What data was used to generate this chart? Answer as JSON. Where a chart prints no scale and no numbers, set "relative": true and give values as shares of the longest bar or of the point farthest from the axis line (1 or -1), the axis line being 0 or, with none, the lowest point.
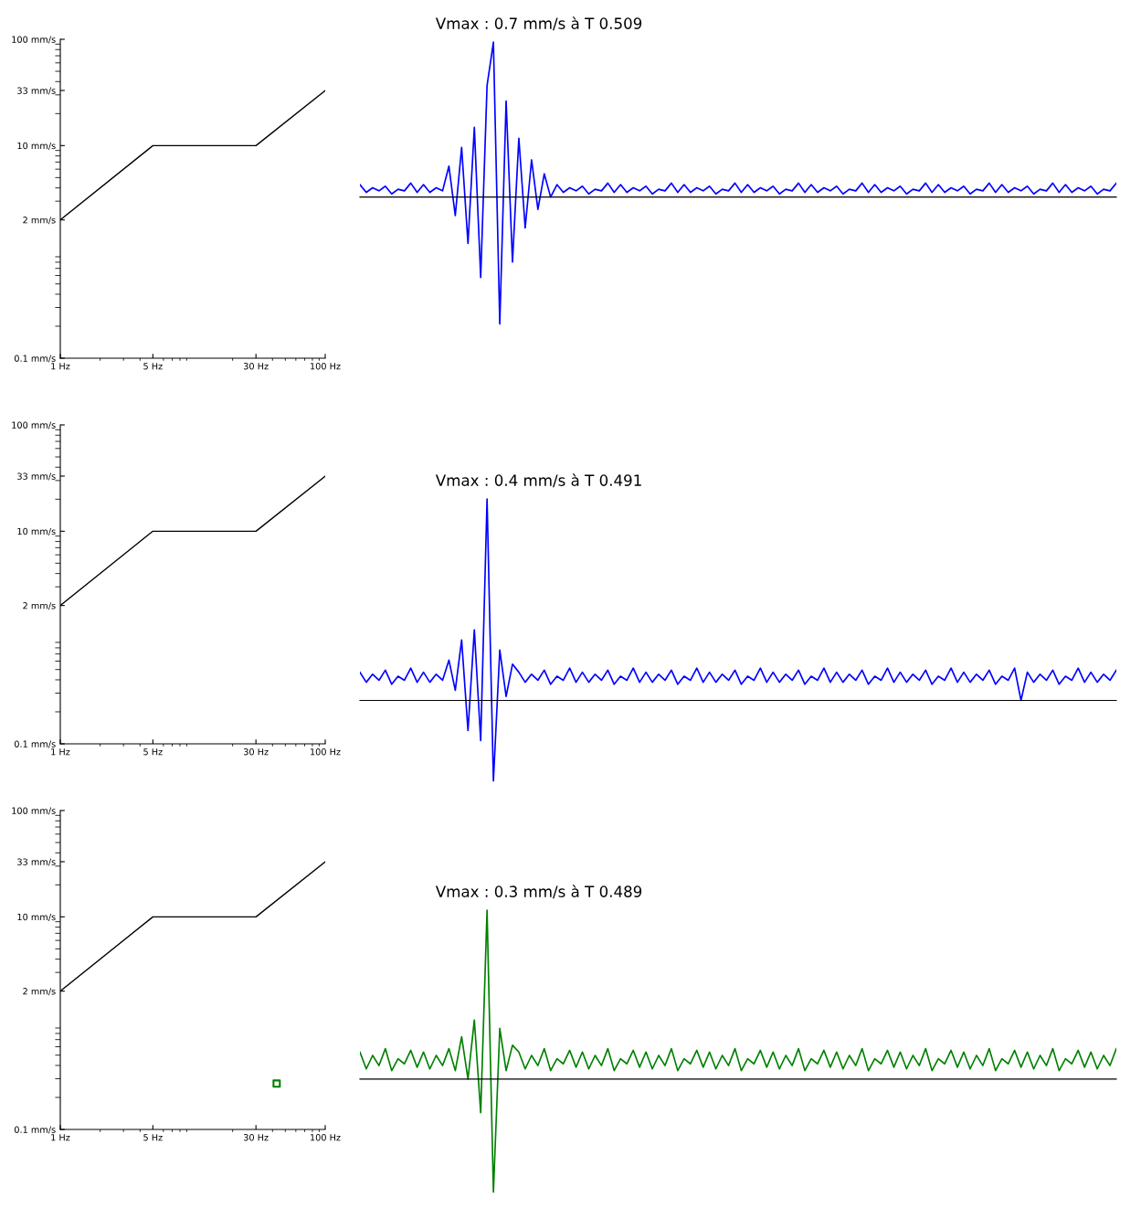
{
  "chart_data": [
    {
      "type": "line",
      "log": "xy",
      "grid": false,
      "xlim": [
        1,
        100
      ],
      "ylim": [
        0.1,
        100
      ],
      "xticks": [
        {
          "value": 1,
          "label": "1 Hz"
        },
        {
          "value": 5,
          "label": "5 Hz"
        },
        {
          "value": 30,
          "label": "30 Hz"
        },
        {
          "value": 100,
          "label": "100 Hz"
        }
      ],
      "yticks": [
        {
          "value": 0.1,
          "label": "0.1 mm/s"
        },
        {
          "value": 2,
          "label": "2 mm/s"
        },
        {
          "value": 10,
          "label": "10 mm/s"
        },
        {
          "value": 33,
          "label": "33 mm/s"
        },
        {
          "value": 100,
          "label": "100 mm/s"
        }
      ],
      "series": [
        {
          "type": "line",
          "x": [
            1,
            5,
            30,
            100
          ],
          "values": [
            2,
            10,
            10,
            33
          ],
          "color": "#000000"
        }
      ]
    },
    {
      "type": "line",
      "title": "Vmax : 0.7 mm/s à T 0.509",
      "relative": true,
      "color": "#0000ff",
      "categories": [
        null,
        null,
        null,
        null,
        null,
        null,
        null,
        null,
        null,
        null,
        null,
        null,
        null,
        null,
        null,
        null,
        null,
        null,
        null,
        null,
        null,
        null,
        null,
        null,
        null,
        null,
        null,
        null,
        null,
        null,
        null,
        null,
        null,
        null,
        null,
        null,
        null,
        null,
        null,
        null,
        null,
        null,
        null,
        null,
        null,
        null,
        null,
        null,
        null,
        null,
        null,
        null,
        null,
        null,
        null,
        null,
        null,
        null,
        null,
        null,
        null,
        null,
        null,
        null,
        null,
        null,
        null,
        null,
        null,
        null,
        null,
        null,
        null,
        null,
        null,
        null,
        null,
        null,
        null,
        null,
        null,
        null,
        null,
        null,
        null,
        null,
        null,
        null,
        null,
        null,
        null,
        null,
        null,
        null,
        null,
        null,
        null,
        null,
        null,
        null,
        null,
        null,
        null,
        null,
        null,
        null,
        null,
        null,
        null,
        null,
        null,
        null,
        null,
        null,
        null,
        null,
        null,
        null,
        null,
        null
      ],
      "values": [
        0.08,
        0.03,
        0.06,
        0.04,
        0.07,
        0.02,
        0.05,
        0.04,
        0.09,
        0.03,
        0.08,
        0.03,
        0.06,
        0.04,
        0.2,
        -0.12,
        0.32,
        -0.3,
        0.45,
        -0.52,
        0.72,
        1,
        -0.82,
        0.62,
        -0.42,
        0.38,
        -0.2,
        0.24,
        -0.08,
        0.15,
        0.0,
        0.08,
        0.03,
        0.06,
        0.04,
        0.07,
        0.02,
        0.05,
        0.04,
        0.09,
        0.03,
        0.08,
        0.03,
        0.06,
        0.04,
        0.07,
        0.02,
        0.05,
        0.04,
        0.09,
        0.03,
        0.08,
        0.03,
        0.06,
        0.04,
        0.07,
        0.02,
        0.05,
        0.04,
        0.09,
        0.03,
        0.08,
        0.03,
        0.06,
        0.04,
        0.07,
        0.02,
        0.05,
        0.04,
        0.09,
        0.03,
        0.08,
        0.03,
        0.06,
        0.04,
        0.07,
        0.02,
        0.05,
        0.04,
        0.09,
        0.03,
        0.08,
        0.03,
        0.06,
        0.04,
        0.07,
        0.02,
        0.05,
        0.04,
        0.09,
        0.03,
        0.08,
        0.03,
        0.06,
        0.04,
        0.07,
        0.02,
        0.05,
        0.04,
        0.09,
        0.03,
        0.08,
        0.03,
        0.06,
        0.04,
        0.07,
        0.02,
        0.05,
        0.04,
        0.09,
        0.03,
        0.08,
        0.03,
        0.06,
        0.04,
        0.07,
        0.02,
        0.05,
        0.04,
        0.09
      ]
    },
    {
      "type": "line",
      "log": "xy",
      "grid": false,
      "xlim": [
        1,
        100
      ],
      "ylim": [
        0.1,
        100
      ],
      "xticks": [
        {
          "value": 1,
          "label": "1 Hz"
        },
        {
          "value": 5,
          "label": "5 Hz"
        },
        {
          "value": 30,
          "label": "30 Hz"
        },
        {
          "value": 100,
          "label": "100 Hz"
        }
      ],
      "yticks": [
        {
          "value": 0.1,
          "label": "0.1 mm/s"
        },
        {
          "value": 2,
          "label": "2 mm/s"
        },
        {
          "value": 10,
          "label": "10 mm/s"
        },
        {
          "value": 33,
          "label": "33 mm/s"
        },
        {
          "value": 100,
          "label": "100 mm/s"
        }
      ],
      "series": [
        {
          "type": "line",
          "x": [
            1,
            5,
            30,
            100
          ],
          "values": [
            2,
            10,
            10,
            33
          ],
          "color": "#000000"
        }
      ]
    },
    {
      "type": "line",
      "title": "Vmax : 0.4 mm/s à T 0.491",
      "relative": true,
      "color": "#0000ff",
      "categories": [
        null,
        null,
        null,
        null,
        null,
        null,
        null,
        null,
        null,
        null,
        null,
        null,
        null,
        null,
        null,
        null,
        null,
        null,
        null,
        null,
        null,
        null,
        null,
        null,
        null,
        null,
        null,
        null,
        null,
        null,
        null,
        null,
        null,
        null,
        null,
        null,
        null,
        null,
        null,
        null,
        null,
        null,
        null,
        null,
        null,
        null,
        null,
        null,
        null,
        null,
        null,
        null,
        null,
        null,
        null,
        null,
        null,
        null,
        null,
        null,
        null,
        null,
        null,
        null,
        null,
        null,
        null,
        null,
        null,
        null,
        null,
        null,
        null,
        null,
        null,
        null,
        null,
        null,
        null,
        null,
        null,
        null,
        null,
        null,
        null,
        null,
        null,
        null,
        null,
        null,
        null,
        null,
        null,
        null,
        null,
        null,
        null,
        null,
        null,
        null,
        null,
        null,
        null,
        null,
        null,
        null,
        null,
        null,
        null,
        null,
        null,
        null,
        null,
        null,
        null,
        null,
        null,
        null,
        null,
        null
      ],
      "values": [
        0.14,
        0.09,
        0.13,
        0.1,
        0.15,
        0.08,
        0.12,
        0.1,
        0.16,
        0.09,
        0.14,
        0.09,
        0.13,
        0.1,
        0.2,
        0.05,
        0.3,
        -0.15,
        0.35,
        -0.2,
        1,
        -0.4,
        0.25,
        0.02,
        0.18,
        0.14,
        0.09,
        0.13,
        0.1,
        0.15,
        0.08,
        0.12,
        0.1,
        0.16,
        0.09,
        0.14,
        0.09,
        0.13,
        0.1,
        0.15,
        0.08,
        0.12,
        0.1,
        0.16,
        0.09,
        0.14,
        0.09,
        0.13,
        0.1,
        0.15,
        0.08,
        0.12,
        0.1,
        0.16,
        0.09,
        0.14,
        0.09,
        0.13,
        0.1,
        0.15,
        0.08,
        0.12,
        0.1,
        0.16,
        0.09,
        0.14,
        0.09,
        0.13,
        0.1,
        0.15,
        0.08,
        0.12,
        0.1,
        0.16,
        0.09,
        0.14,
        0.09,
        0.13,
        0.1,
        0.15,
        0.08,
        0.12,
        0.1,
        0.16,
        0.09,
        0.14,
        0.09,
        0.13,
        0.1,
        0.15,
        0.08,
        0.12,
        0.1,
        0.16,
        0.09,
        0.14,
        0.09,
        0.13,
        0.1,
        0.15,
        0.08,
        0.12,
        0.1,
        0.16,
        0.0,
        0.14,
        0.09,
        0.13,
        0.1,
        0.15,
        0.08,
        0.12,
        0.1,
        0.16,
        0.09,
        0.14,
        0.09,
        0.13,
        0.1,
        0.15
      ]
    },
    {
      "type": "line",
      "log": "xy",
      "grid": false,
      "xlim": [
        1,
        100
      ],
      "ylim": [
        0.1,
        100
      ],
      "xticks": [
        {
          "value": 1,
          "label": "1 Hz"
        },
        {
          "value": 5,
          "label": "5 Hz"
        },
        {
          "value": 30,
          "label": "30 Hz"
        },
        {
          "value": 100,
          "label": "100 Hz"
        }
      ],
      "yticks": [
        {
          "value": 0.1,
          "label": "0.1 mm/s"
        },
        {
          "value": 2,
          "label": "2 mm/s"
        },
        {
          "value": 10,
          "label": "10 mm/s"
        },
        {
          "value": 33,
          "label": "33 mm/s"
        },
        {
          "value": 100,
          "label": "100 mm/s"
        }
      ],
      "series": [
        {
          "type": "line",
          "x": [
            1,
            5,
            30,
            100
          ],
          "values": [
            2,
            10,
            10,
            33
          ],
          "color": "#000000"
        },
        {
          "type": "scatter",
          "x": [
            43
          ],
          "values": [
            0.27
          ],
          "color": "#008000",
          "marker": "square"
        }
      ]
    },
    {
      "type": "line",
      "title": "Vmax : 0.3 mm/s à T 0.489",
      "relative": true,
      "color": "#008000",
      "categories": [
        null,
        null,
        null,
        null,
        null,
        null,
        null,
        null,
        null,
        null,
        null,
        null,
        null,
        null,
        null,
        null,
        null,
        null,
        null,
        null,
        null,
        null,
        null,
        null,
        null,
        null,
        null,
        null,
        null,
        null,
        null,
        null,
        null,
        null,
        null,
        null,
        null,
        null,
        null,
        null,
        null,
        null,
        null,
        null,
        null,
        null,
        null,
        null,
        null,
        null,
        null,
        null,
        null,
        null,
        null,
        null,
        null,
        null,
        null,
        null,
        null,
        null,
        null,
        null,
        null,
        null,
        null,
        null,
        null,
        null,
        null,
        null,
        null,
        null,
        null,
        null,
        null,
        null,
        null,
        null,
        null,
        null,
        null,
        null,
        null,
        null,
        null,
        null,
        null,
        null,
        null,
        null,
        null,
        null,
        null,
        null,
        null,
        null,
        null,
        null,
        null,
        null,
        null,
        null,
        null,
        null,
        null,
        null,
        null,
        null,
        null,
        null,
        null,
        null,
        null,
        null,
        null,
        null,
        null,
        null
      ],
      "values": [
        0.16,
        0.06,
        0.14,
        0.08,
        0.18,
        0.05,
        0.12,
        0.09,
        0.17,
        0.07,
        0.16,
        0.06,
        0.14,
        0.08,
        0.18,
        0.05,
        0.25,
        0.0,
        0.35,
        -0.2,
        1,
        -0.67,
        0.3,
        0.05,
        0.2,
        0.16,
        0.06,
        0.14,
        0.08,
        0.18,
        0.05,
        0.12,
        0.09,
        0.17,
        0.07,
        0.16,
        0.06,
        0.14,
        0.08,
        0.18,
        0.05,
        0.12,
        0.09,
        0.17,
        0.07,
        0.16,
        0.06,
        0.14,
        0.08,
        0.18,
        0.05,
        0.12,
        0.09,
        0.17,
        0.07,
        0.16,
        0.06,
        0.14,
        0.08,
        0.18,
        0.05,
        0.12,
        0.09,
        0.17,
        0.07,
        0.16,
        0.06,
        0.14,
        0.08,
        0.18,
        0.05,
        0.12,
        0.09,
        0.17,
        0.07,
        0.16,
        0.06,
        0.14,
        0.08,
        0.18,
        0.05,
        0.12,
        0.09,
        0.17,
        0.07,
        0.16,
        0.06,
        0.14,
        0.08,
        0.18,
        0.05,
        0.12,
        0.09,
        0.17,
        0.07,
        0.16,
        0.06,
        0.14,
        0.08,
        0.18,
        0.05,
        0.12,
        0.09,
        0.17,
        0.07,
        0.16,
        0.06,
        0.14,
        0.08,
        0.18,
        0.05,
        0.12,
        0.09,
        0.17,
        0.07,
        0.16,
        0.06,
        0.14,
        0.08,
        0.18
      ]
    }
  ]
}
